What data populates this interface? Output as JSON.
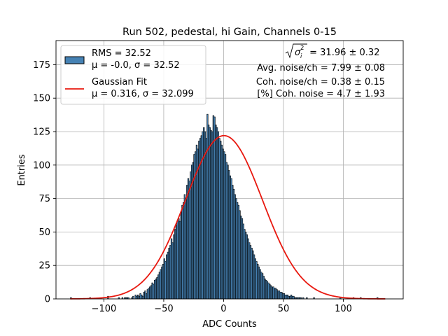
{
  "chart_data": {
    "type": "bar",
    "title": "Run 502, pedestal, hi Gain, Channels 0-15",
    "xlabel": "ADC Counts",
    "ylabel": "Entries",
    "xlim": [
      -140,
      150
    ],
    "ylim": [
      0,
      193
    ],
    "grid": true,
    "x_ticks": [
      -100,
      -50,
      0,
      50,
      100
    ],
    "y_ticks": [
      0,
      25,
      50,
      75,
      100,
      125,
      150,
      175
    ],
    "histogram": {
      "name": "RMS = 32.52",
      "name_line2": "μ = -0.0, σ = 32.52",
      "color": "#4682b4",
      "edgecolor": "#000000",
      "bin_start": -128,
      "bin_width": 1,
      "values": [
        1,
        0,
        0,
        0,
        0,
        0,
        0,
        0,
        0,
        0,
        0,
        0,
        0,
        0,
        0,
        0,
        1,
        0,
        0,
        0,
        0,
        0,
        0,
        0,
        0,
        0,
        0,
        0,
        0,
        0,
        0,
        2,
        0,
        0,
        0,
        0,
        0,
        0,
        0,
        0,
        1,
        0,
        0,
        1,
        0,
        1,
        1,
        1,
        1,
        0,
        0,
        1,
        2,
        0,
        3,
        2,
        3,
        2,
        4,
        3,
        2,
        5,
        6,
        4,
        7,
        8,
        9,
        10,
        12,
        11,
        14,
        15,
        16,
        18,
        20,
        22,
        24,
        26,
        30,
        28,
        33,
        35,
        38,
        40,
        45,
        42,
        48,
        52,
        55,
        58,
        60,
        58,
        65,
        70,
        72,
        78,
        75,
        85,
        90,
        88,
        95,
        100,
        102,
        108,
        110,
        115,
        112,
        118,
        120,
        122,
        125,
        128,
        125,
        120,
        138,
        130,
        128,
        126,
        125,
        137,
        136,
        130,
        128,
        125,
        120,
        118,
        115,
        112,
        110,
        108,
        102,
        100,
        96,
        92,
        90,
        85,
        82,
        78,
        75,
        72,
        70,
        66,
        62,
        60,
        56,
        52,
        50,
        48,
        45,
        42,
        40,
        38,
        36,
        33,
        30,
        28,
        26,
        24,
        22,
        20,
        19,
        17,
        15,
        14,
        13,
        12,
        11,
        10,
        9,
        9,
        8,
        8,
        7,
        6,
        6,
        5,
        5,
        4,
        4,
        3,
        3,
        3,
        2,
        2,
        3,
        2,
        2,
        1,
        1,
        1,
        1,
        1,
        1,
        0,
        1,
        0,
        0,
        1,
        0,
        0,
        0,
        0,
        0,
        1,
        0,
        0,
        0,
        0,
        0,
        0,
        0,
        0,
        0,
        0,
        0,
        0,
        0,
        0,
        0,
        0,
        0,
        0,
        0,
        0,
        0,
        1,
        0,
        0,
        0,
        0,
        0,
        0,
        0,
        0,
        0,
        0,
        1,
        0,
        0,
        0,
        0,
        0,
        1,
        0,
        0,
        0,
        0,
        0,
        0,
        0,
        0,
        0,
        0,
        0,
        0,
        0,
        1
      ]
    },
    "fit": {
      "name": "Gaussian Fit",
      "name_line2": "μ = 0.316, σ = 32.099",
      "color": "#e8180f",
      "mu": 0.316,
      "sigma": 32.099,
      "amplitude": 122,
      "x_range": [
        -128,
        135
      ]
    },
    "legend_position": "upper left",
    "annotations": [
      {
        "prefix": "",
        "sigma_symbol": "σ",
        "sub": "i",
        "sup": "2",
        "text": " = 31.96 ± 0.32"
      },
      {
        "text": "Avg. noise/ch = 7.99 ± 0.08"
      },
      {
        "text": "Coh. noise/ch = 0.38 ± 0.15"
      },
      {
        "text": "[%] Coh. noise = 4.7 ± 1.93"
      }
    ]
  }
}
